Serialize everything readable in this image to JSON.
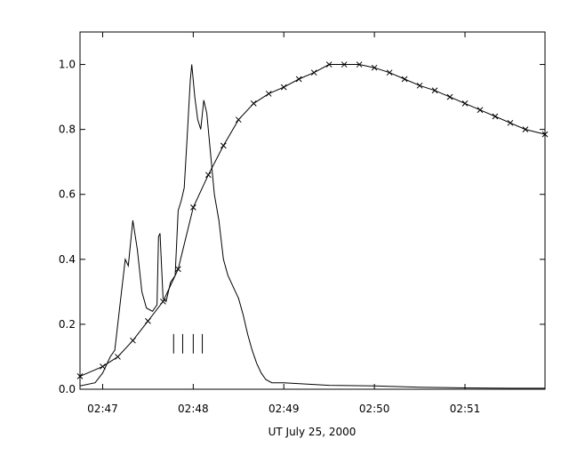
{
  "chart_data": {
    "type": "line",
    "title": "",
    "xlabel": "UT July 25, 2000",
    "ylabel": "",
    "xlim": [
      "02:46:45",
      "02:51:53"
    ],
    "ylim": [
      0.0,
      1.1
    ],
    "x_ticks": [
      {
        "time": "02:47:00",
        "label": "02:47"
      },
      {
        "time": "02:48:00",
        "label": "02:48"
      },
      {
        "time": "02:49:00",
        "label": "02:49"
      },
      {
        "time": "02:50:00",
        "label": "02:50"
      },
      {
        "time": "02:51:00",
        "label": "02:51"
      }
    ],
    "y_ticks": [
      {
        "value": 0.0,
        "label": "0.0"
      },
      {
        "value": 0.2,
        "label": "0.2"
      },
      {
        "value": 0.4,
        "label": "0.4"
      },
      {
        "value": 0.6,
        "label": "0.6"
      },
      {
        "value": 0.8,
        "label": "0.8"
      },
      {
        "value": 1.0,
        "label": "1.0"
      }
    ],
    "grid": false,
    "legend": "none",
    "series": [
      {
        "style": "solid-line",
        "points": [
          [
            "02:46:45",
            0.01
          ],
          [
            "02:46:55",
            0.02
          ],
          [
            "02:47:00",
            0.05
          ],
          [
            "02:47:05",
            0.1
          ],
          [
            "02:47:08",
            0.12
          ],
          [
            "02:47:12",
            0.28
          ],
          [
            "02:47:15",
            0.4
          ],
          [
            "02:47:17",
            0.38
          ],
          [
            "02:47:20",
            0.52
          ],
          [
            "02:47:23",
            0.43
          ],
          [
            "02:47:26",
            0.3
          ],
          [
            "02:47:29",
            0.25
          ],
          [
            "02:47:33",
            0.24
          ],
          [
            "02:47:36",
            0.26
          ],
          [
            "02:47:37",
            0.47
          ],
          [
            "02:47:38",
            0.48
          ],
          [
            "02:47:40",
            0.28
          ],
          [
            "02:47:42",
            0.27
          ],
          [
            "02:47:45",
            0.33
          ],
          [
            "02:47:48",
            0.35
          ],
          [
            "02:47:50",
            0.55
          ],
          [
            "02:47:52",
            0.58
          ],
          [
            "02:47:54",
            0.62
          ],
          [
            "02:47:56",
            0.78
          ],
          [
            "02:47:58",
            0.95
          ],
          [
            "02:47:59",
            1.0
          ],
          [
            "02:48:01",
            0.9
          ],
          [
            "02:48:03",
            0.83
          ],
          [
            "02:48:05",
            0.8
          ],
          [
            "02:48:07",
            0.89
          ],
          [
            "02:48:09",
            0.85
          ],
          [
            "02:48:12",
            0.7
          ],
          [
            "02:48:14",
            0.6
          ],
          [
            "02:48:17",
            0.52
          ],
          [
            "02:48:20",
            0.4
          ],
          [
            "02:48:23",
            0.35
          ],
          [
            "02:48:26",
            0.32
          ],
          [
            "02:48:28",
            0.3
          ],
          [
            "02:48:30",
            0.28
          ],
          [
            "02:48:33",
            0.23
          ],
          [
            "02:48:36",
            0.17
          ],
          [
            "02:48:39",
            0.12
          ],
          [
            "02:48:42",
            0.08
          ],
          [
            "02:48:45",
            0.05
          ],
          [
            "02:48:48",
            0.03
          ],
          [
            "02:48:52",
            0.02
          ],
          [
            "02:49:00",
            0.02
          ],
          [
            "02:49:30",
            0.012
          ],
          [
            "02:50:00",
            0.01
          ],
          [
            "02:50:30",
            0.006
          ],
          [
            "02:51:00",
            0.004
          ],
          [
            "02:51:30",
            0.003
          ],
          [
            "02:51:53",
            0.003
          ]
        ]
      },
      {
        "style": "line-with-x-markers",
        "points": [
          [
            "02:46:45",
            0.04
          ],
          [
            "02:47:00",
            0.07
          ],
          [
            "02:47:10",
            0.1
          ],
          [
            "02:47:20",
            0.15
          ],
          [
            "02:47:30",
            0.21
          ],
          [
            "02:47:40",
            0.27
          ],
          [
            "02:47:50",
            0.37
          ],
          [
            "02:48:00",
            0.56
          ],
          [
            "02:48:10",
            0.66
          ],
          [
            "02:48:20",
            0.75
          ],
          [
            "02:48:30",
            0.83
          ],
          [
            "02:48:40",
            0.88
          ],
          [
            "02:48:50",
            0.91
          ],
          [
            "02:49:00",
            0.93
          ],
          [
            "02:49:10",
            0.955
          ],
          [
            "02:49:20",
            0.975
          ],
          [
            "02:49:30",
            1.0
          ],
          [
            "02:49:40",
            1.0
          ],
          [
            "02:49:50",
            1.0
          ],
          [
            "02:50:00",
            0.99
          ],
          [
            "02:50:10",
            0.975
          ],
          [
            "02:50:20",
            0.955
          ],
          [
            "02:50:30",
            0.935
          ],
          [
            "02:50:40",
            0.92
          ],
          [
            "02:50:50",
            0.9
          ],
          [
            "02:51:00",
            0.88
          ],
          [
            "02:51:10",
            0.86
          ],
          [
            "02:51:20",
            0.84
          ],
          [
            "02:51:30",
            0.82
          ],
          [
            "02:51:40",
            0.8
          ],
          [
            "02:51:53",
            0.785
          ]
        ]
      }
    ],
    "vertical_markers": {
      "times": [
        "02:47:47",
        "02:47:53",
        "02:48:00",
        "02:48:06"
      ],
      "y_range": [
        0.11,
        0.17
      ]
    }
  }
}
